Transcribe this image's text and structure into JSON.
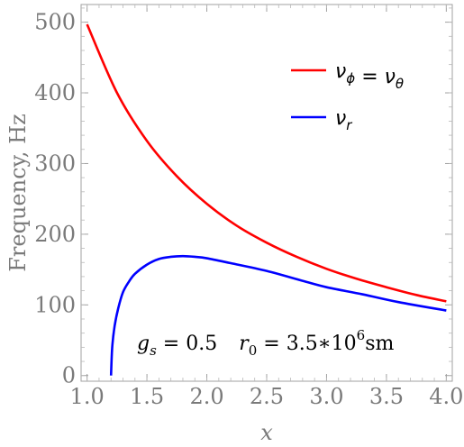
{
  "chart_data": {
    "type": "line",
    "xlabel": "x",
    "ylabel": "Frequency, Hz",
    "xlim": [
      0.95,
      4.05
    ],
    "ylim": [
      -8,
      525
    ],
    "x_ticks": [
      "1.0",
      "1.5",
      "2.0",
      "2.5",
      "3.0",
      "3.5",
      "4.0"
    ],
    "y_ticks": [
      "0",
      "100",
      "200",
      "300",
      "400",
      "500"
    ],
    "grid": false,
    "legend_position": "top-right",
    "series": [
      {
        "name": "ν_ϕ = ν_θ",
        "color": "#ff0000",
        "x": [
          1.0,
          1.25,
          1.5,
          1.75,
          2.0,
          2.25,
          2.5,
          2.75,
          3.0,
          3.25,
          3.5,
          3.75,
          4.0
        ],
        "y": [
          497,
          400,
          332,
          282,
          243,
          212,
          188,
          168,
          151,
          137,
          125,
          114,
          105
        ]
      },
      {
        "name": "ν_r",
        "color": "#0000ff",
        "x": [
          1.2,
          1.21,
          1.23,
          1.26,
          1.3,
          1.35,
          1.4,
          1.5,
          1.6,
          1.7,
          1.8,
          1.9,
          2.0,
          2.2,
          2.5,
          2.8,
          3.0,
          3.3,
          3.6,
          4.0
        ],
        "y": [
          0,
          40,
          70,
          95,
          118,
          133,
          144,
          157,
          165,
          168,
          169,
          168,
          166,
          159,
          148,
          134,
          125,
          115,
          104,
          92
        ]
      }
    ],
    "legend": {
      "entries": [
        {
          "color": "#ff0000",
          "parts": [
            {
              "t": "ν",
              "sub": "ϕ"
            },
            {
              "t": " = "
            },
            {
              "t": "ν",
              "sub": "θ"
            }
          ]
        },
        {
          "color": "#0000ff",
          "parts": [
            {
              "t": "ν",
              "sub": "r"
            }
          ]
        }
      ]
    },
    "annotation": {
      "g_symbol": "g",
      "g_sub": "s",
      "g_value": " = 0.5",
      "r_symbol": "r",
      "r_sub": "0",
      "r_value": " = 3.5∗10",
      "r_exp": "6",
      "r_unit": "sm"
    }
  }
}
